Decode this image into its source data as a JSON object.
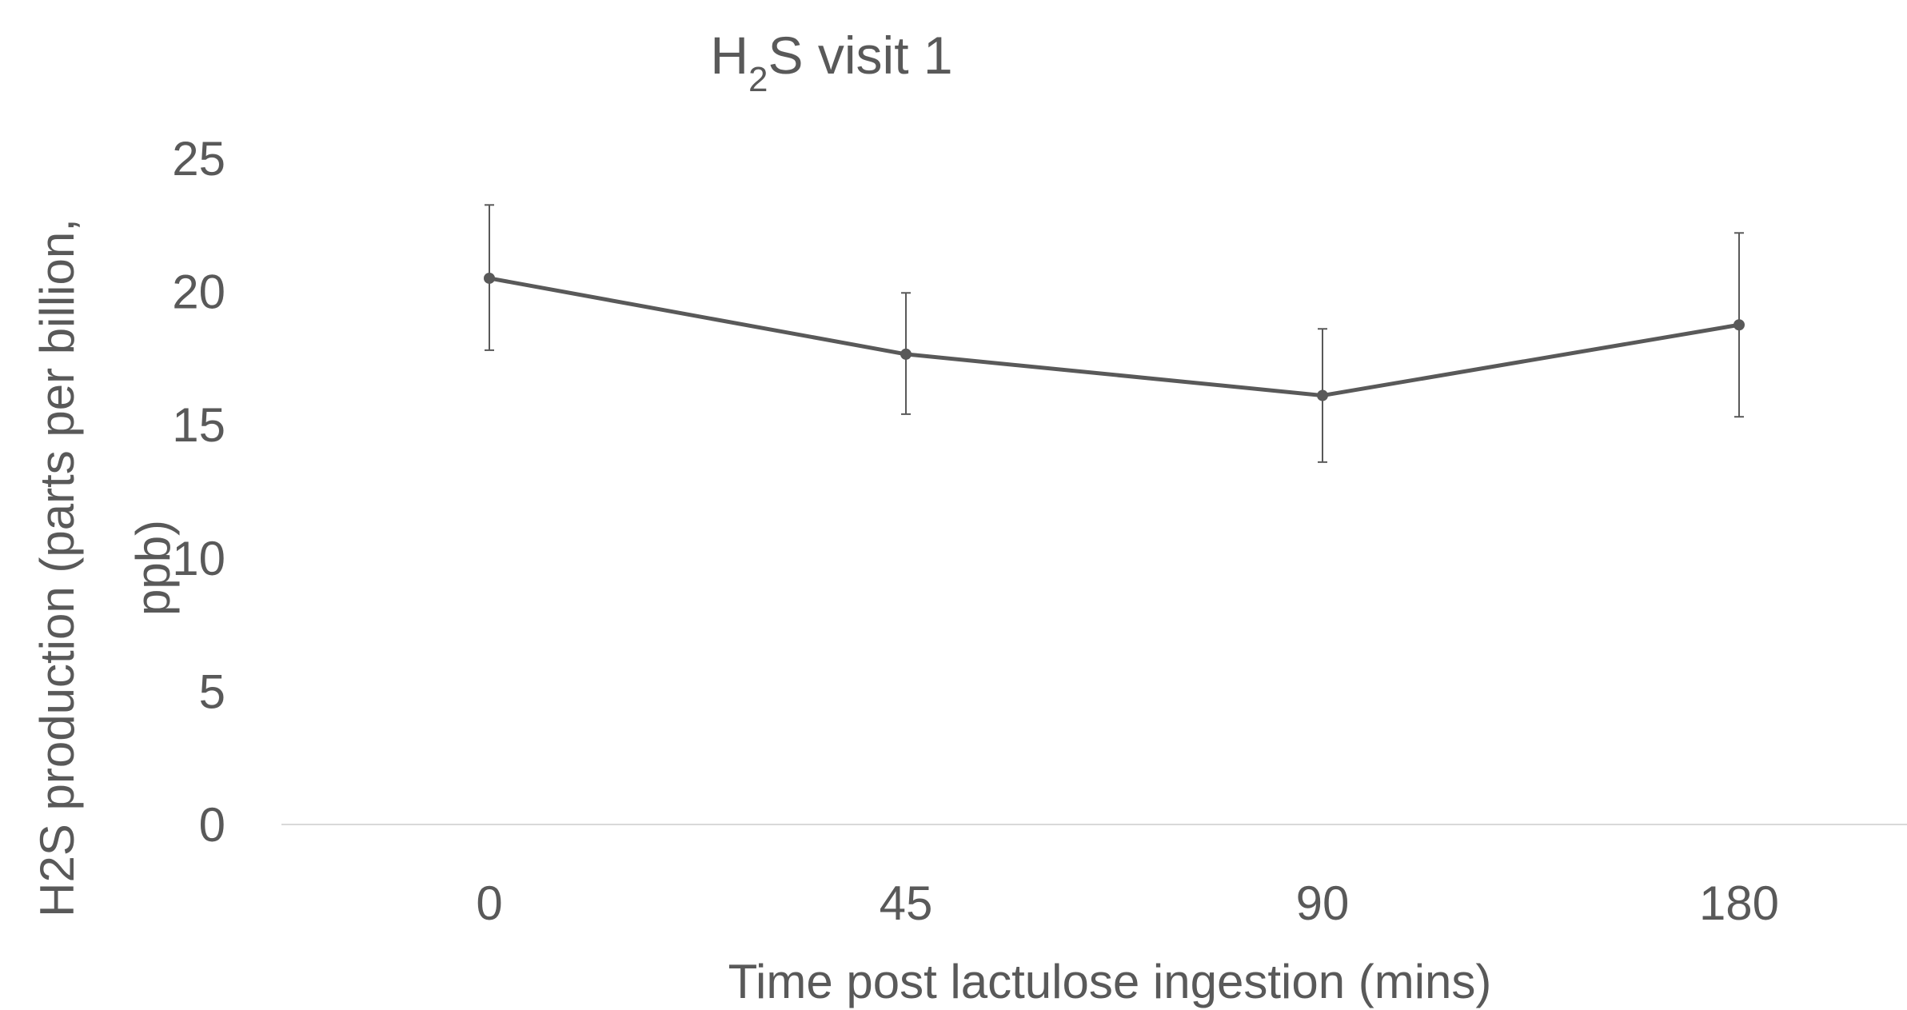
{
  "chart_data": {
    "type": "line",
    "title": {
      "main": "H",
      "subscript": "2",
      "rest": "S visit 1"
    },
    "xlabel": "Time post lactulose ingestion (mins)",
    "ylabel_lines": [
      "H2S production (parts per billion,",
      "ppb)"
    ],
    "categories": [
      "0",
      "45",
      "90",
      "180"
    ],
    "series": [
      {
        "values": [
          20.5,
          17.65,
          16.1,
          18.75
        ],
        "error_upper": [
          23.25,
          19.95,
          18.6,
          22.2
        ],
        "error_lower": [
          17.8,
          15.4,
          13.6,
          15.3
        ]
      }
    ],
    "ylim": [
      0,
      25
    ],
    "yticks": [
      0,
      5,
      10,
      15,
      20,
      25
    ],
    "grid": false,
    "colors": {
      "line": "#595959",
      "text": "#595959",
      "axis": "#d9d9d9",
      "error_bar": "#595959"
    }
  }
}
